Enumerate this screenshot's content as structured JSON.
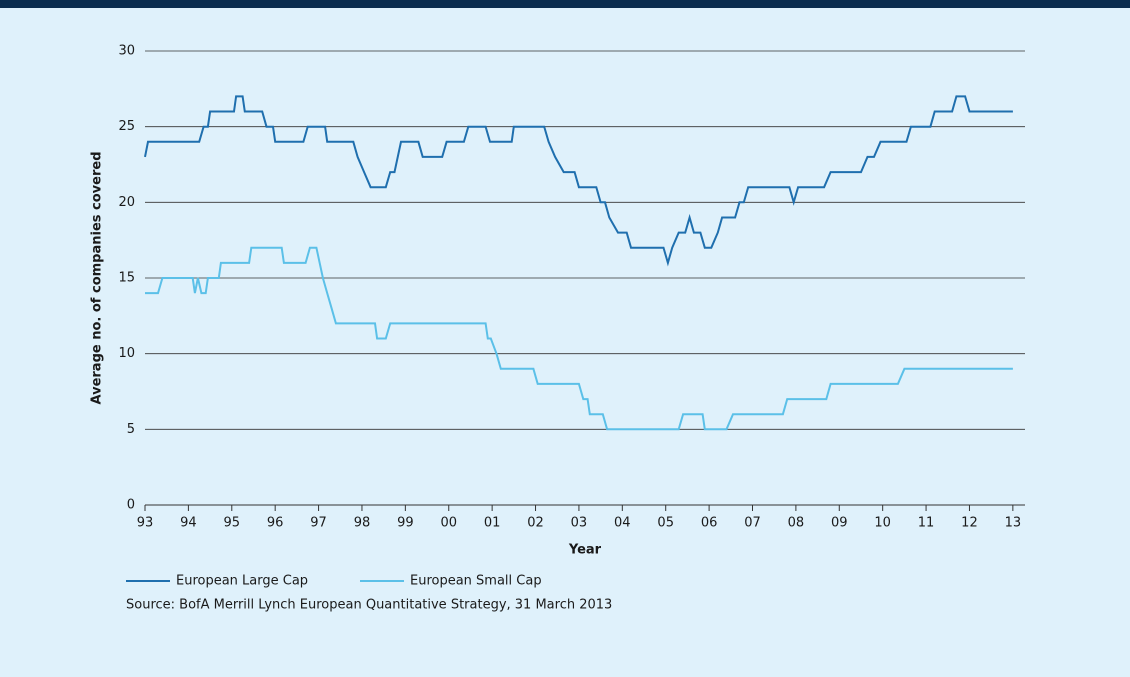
{
  "chart_data": {
    "type": "line",
    "ylabel": "Average no. of companies covered",
    "xlabel": "Year",
    "note": "Source: BofA Merrill Lynch European Quantitative Strategy, 31 March 2013",
    "xlim": [
      1993,
      2013.28
    ],
    "ylim": [
      0,
      30
    ],
    "yticks": [
      0,
      5,
      10,
      15,
      20,
      25,
      30
    ],
    "xticks": [
      {
        "value": 1993,
        "label": "93"
      },
      {
        "value": 1994,
        "label": "94"
      },
      {
        "value": 1995,
        "label": "95"
      },
      {
        "value": 1996,
        "label": "96"
      },
      {
        "value": 1997,
        "label": "97"
      },
      {
        "value": 1998,
        "label": "98"
      },
      {
        "value": 1999,
        "label": "99"
      },
      {
        "value": 2000,
        "label": "00"
      },
      {
        "value": 2001,
        "label": "01"
      },
      {
        "value": 2002,
        "label": "02"
      },
      {
        "value": 2003,
        "label": "03"
      },
      {
        "value": 2004,
        "label": "04"
      },
      {
        "value": 2005,
        "label": "05"
      },
      {
        "value": 2006,
        "label": "06"
      },
      {
        "value": 2007,
        "label": "07"
      },
      {
        "value": 2008,
        "label": "08"
      },
      {
        "value": 2009,
        "label": "09"
      },
      {
        "value": 2010,
        "label": "10"
      },
      {
        "value": 2011,
        "label": "11"
      },
      {
        "value": 2012,
        "label": "12"
      },
      {
        "value": 2013,
        "label": "13"
      }
    ],
    "grid": true,
    "series": [
      {
        "name": "European Large Cap",
        "color": "#1f6fae",
        "x": [
          1993,
          1993.07,
          1994.25,
          1994.35,
          1994.45,
          1994.5,
          1995.05,
          1995.1,
          1995.25,
          1995.3,
          1995.7,
          1995.8,
          1995.95,
          1996.0,
          1996.65,
          1996.75,
          1997.15,
          1997.2,
          1997.8,
          1997.9,
          1998.05,
          1998.2,
          1998.55,
          1998.65,
          1998.75,
          1998.9,
          1999.3,
          1999.4,
          1999.85,
          1999.95,
          2000.35,
          2000.45,
          2000.85,
          2000.95,
          2001.45,
          2001.5,
          2002.2,
          2002.3,
          2002.45,
          2002.65,
          2002.9,
          2003.0,
          2003.4,
          2003.5,
          2003.6,
          2003.7,
          2003.9,
          2004.1,
          2004.2,
          2004.95,
          2005.05,
          2005.15,
          2005.3,
          2005.45,
          2005.55,
          2005.65,
          2005.8,
          2005.9,
          2006.05,
          2006.2,
          2006.3,
          2006.6,
          2006.7,
          2006.8,
          2006.9,
          2007.85,
          2007.95,
          2008.05,
          2008.65,
          2008.8,
          2009.5,
          2009.65,
          2009.8,
          2009.95,
          2010.55,
          2010.65,
          2011.1,
          2011.2,
          2011.6,
          2011.7,
          2011.9,
          2012.0,
          2013.0
        ],
        "values": [
          23,
          24,
          24,
          25,
          25,
          26,
          26,
          27,
          27,
          26,
          26,
          25,
          25,
          24,
          24,
          25,
          25,
          24,
          24,
          23,
          22,
          21,
          21,
          22,
          22,
          24,
          24,
          23,
          23,
          24,
          24,
          25,
          25,
          24,
          24,
          25,
          25,
          24,
          23,
          22,
          22,
          21,
          21,
          20,
          20,
          19,
          18,
          18,
          17,
          17,
          16,
          17,
          18,
          18,
          19,
          18,
          18,
          17,
          17,
          18,
          19,
          19,
          20,
          20,
          21,
          21,
          20,
          21,
          21,
          22,
          22,
          23,
          23,
          24,
          24,
          25,
          25,
          26,
          26,
          27,
          27,
          26,
          26
        ]
      },
      {
        "name": "European Small Cap",
        "color": "#5bc0e8",
        "x": [
          1993,
          1993.3,
          1993.4,
          1994.1,
          1994.15,
          1994.22,
          1994.3,
          1994.4,
          1994.45,
          1994.7,
          1994.75,
          1995.4,
          1995.45,
          1996.15,
          1996.2,
          1996.7,
          1996.8,
          1996.95,
          1997.1,
          1997.2,
          1997.3,
          1997.4,
          1998.3,
          1998.35,
          1998.55,
          1998.65,
          2000.85,
          2000.9,
          2000.97,
          2001.1,
          2001.2,
          2001.95,
          2002.05,
          2003.0,
          2003.1,
          2003.2,
          2003.25,
          2003.55,
          2003.65,
          2005.3,
          2005.4,
          2005.85,
          2005.9,
          2006.4,
          2006.55,
          2007.7,
          2007.8,
          2008.7,
          2008.8,
          2010.35,
          2010.5,
          2013.0
        ],
        "values": [
          14,
          14,
          15,
          15,
          14,
          15,
          14,
          14,
          15,
          15,
          16,
          16,
          17,
          17,
          16,
          16,
          17,
          17,
          15,
          14,
          13,
          12,
          12,
          11,
          11,
          12,
          12,
          11,
          11,
          10,
          9,
          9,
          8,
          8,
          7,
          7,
          6,
          6,
          5,
          5,
          6,
          6,
          5,
          5,
          6,
          6,
          7,
          7,
          8,
          8,
          9,
          9
        ]
      }
    ]
  }
}
